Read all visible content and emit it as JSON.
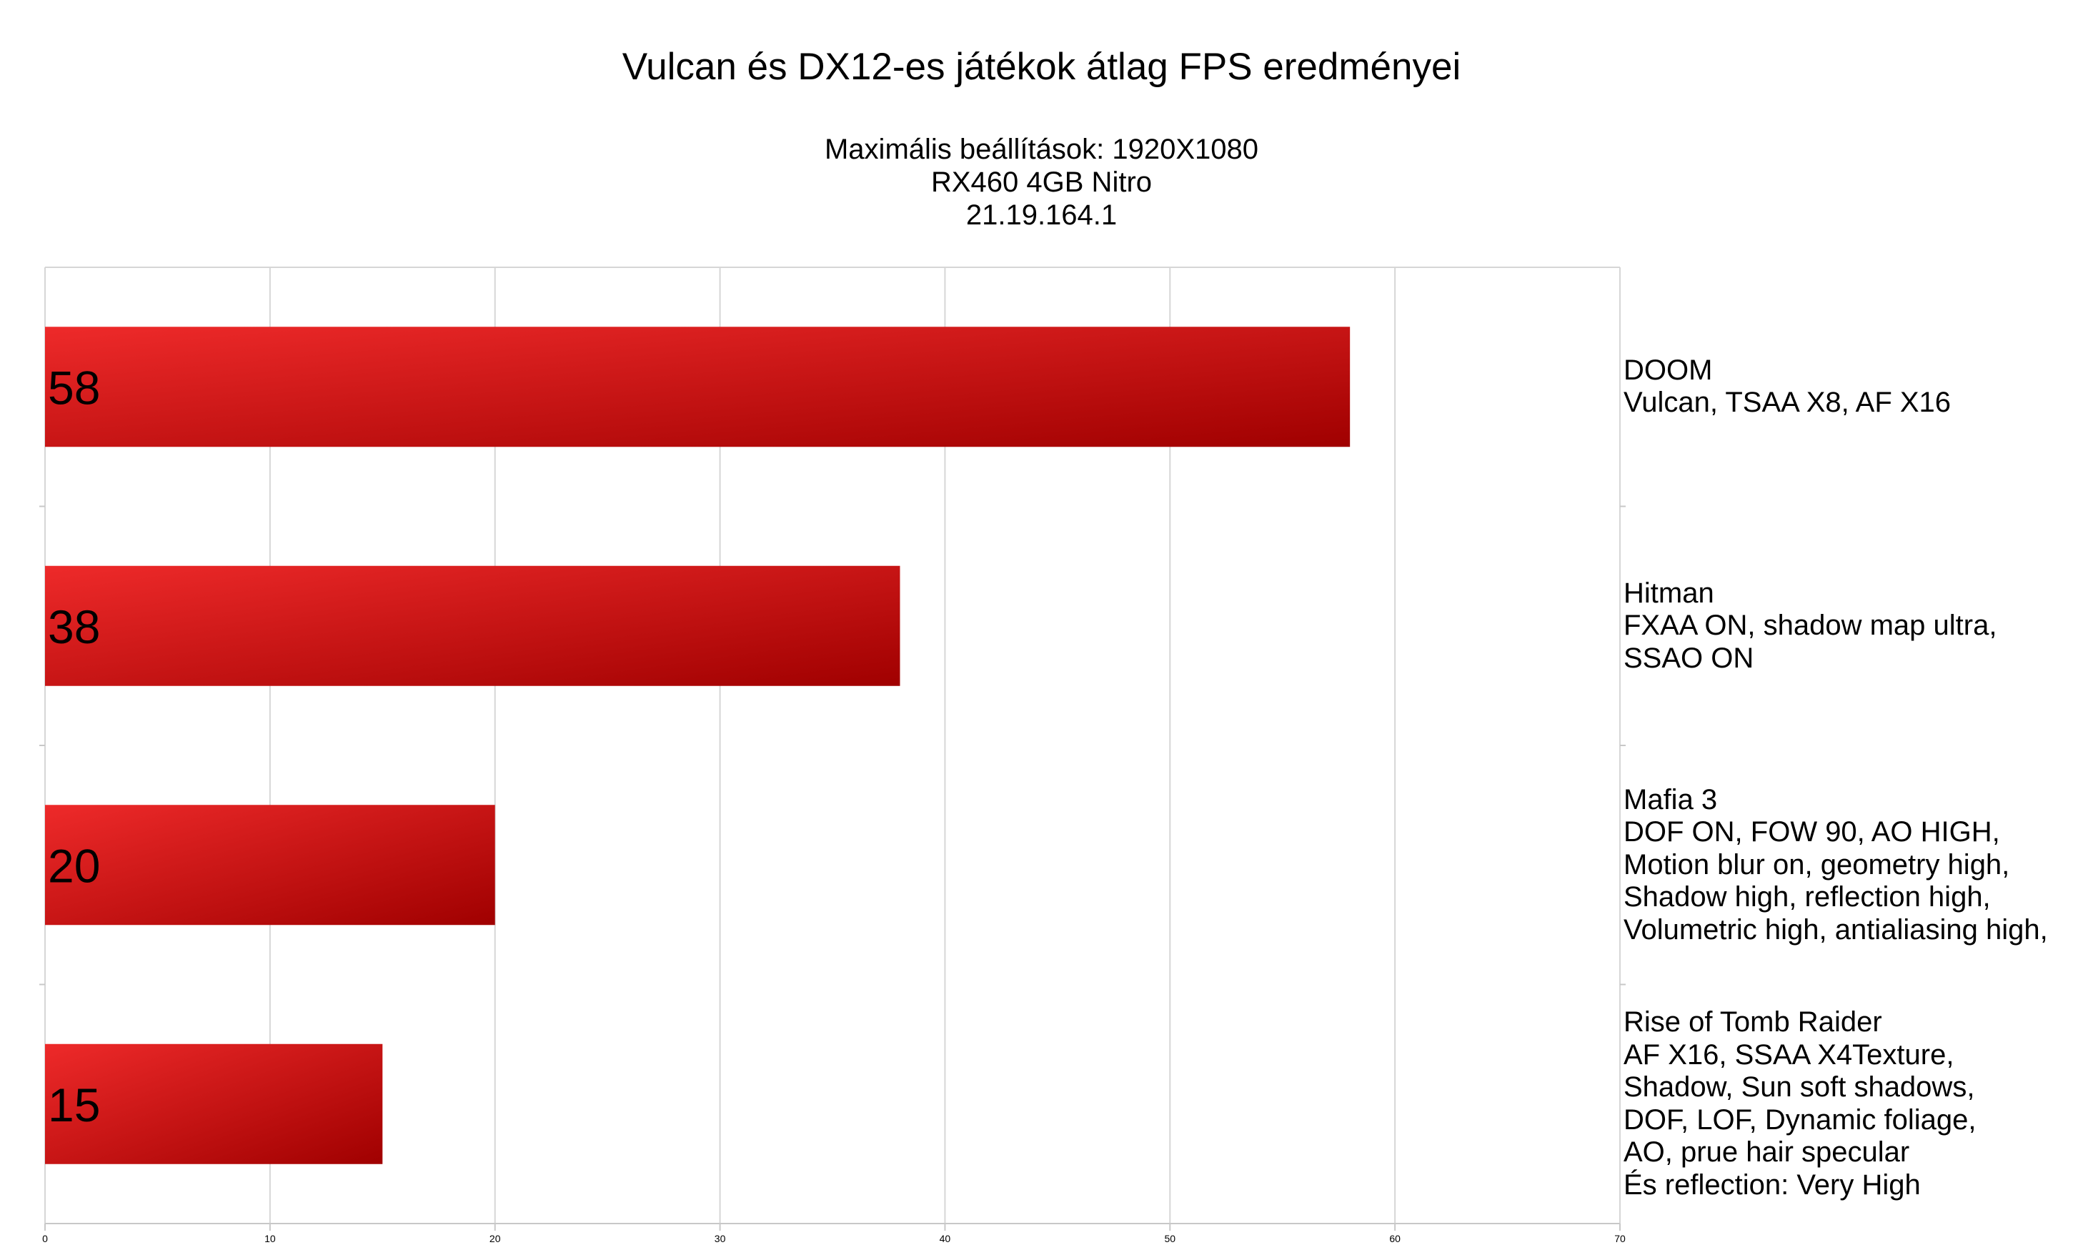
{
  "chart_data": {
    "type": "bar",
    "orientation": "horizontal",
    "title": "Vulcan és DX12-es játékok átlag FPS eredményei",
    "subtitle": [
      "Maximális beállítások: 1920X1080",
      "RX460 4GB Nitro",
      "21.19.164.1"
    ],
    "categories": [
      [
        "DOOM",
        "Vulcan, TSAA X8, AF X16"
      ],
      [
        "Hitman",
        "FXAA ON, shadow map ultra,",
        "SSAO ON"
      ],
      [
        "Mafia 3",
        "DOF ON, FOW 90, AO HIGH,",
        "Motion blur on, geometry high,",
        "Shadow high, reflection high,",
        "Volumetric high, antialiasing high,"
      ],
      [
        "Rise of Tomb Raider",
        "AF X16, SSAA X4Texture,",
        "Shadow, Sun soft shadows,",
        "DOF, LOF, Dynamic foliage,",
        "AO, prue hair specular",
        "És reflection: Very High"
      ]
    ],
    "values": [
      58,
      38,
      20,
      15
    ],
    "data_labels": [
      "58",
      "38",
      "20",
      "15"
    ],
    "xlim": [
      0,
      70
    ],
    "xticks": [
      0,
      10,
      20,
      30,
      40,
      50,
      60,
      70
    ],
    "grid": true,
    "bar_color_light": "#ee2a2a",
    "bar_color_dark": "#a00000"
  }
}
